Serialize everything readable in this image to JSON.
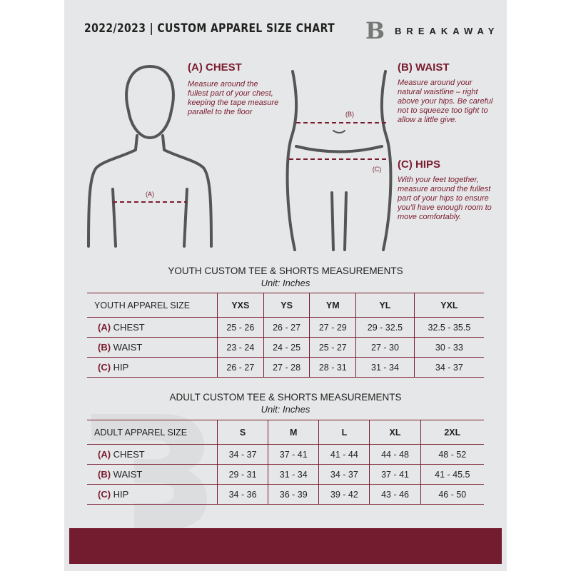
{
  "header": {
    "title": "2022/2023  |  CUSTOM APPAREL SIZE CHART",
    "brand": "BREAKAWAY"
  },
  "guide": {
    "chest": {
      "heading": "(A) CHEST",
      "marker": "(A)",
      "text": "Measure around the fullest part of your chest, keeping the tape measure parallel to the floor"
    },
    "waist": {
      "heading": "(B) WAIST",
      "marker": "(B)",
      "text": "Measure around your natural waistline – right above your hips. Be careful not to squeeze too tight to allow a little give."
    },
    "hips": {
      "heading": "(C) HIPS",
      "marker": "(C)",
      "text": "With your feet together, measure around the fullest part of your hips to ensure you'll have enough room to move comfortably."
    }
  },
  "youth": {
    "title": "YOUTH CUSTOM TEE & SHORTS MEASUREMENTS",
    "unit": "Unit: Inches",
    "size_label": "YOUTH APPAREL SIZE",
    "sizes": [
      "YXS",
      "YS",
      "YM",
      "YL",
      "YXL"
    ],
    "rows": [
      {
        "code": "(A)",
        "name": "CHEST",
        "values": [
          "25 - 26",
          "26 - 27",
          "27 - 29",
          "29 - 32.5",
          "32.5 - 35.5"
        ]
      },
      {
        "code": "(B)",
        "name": "WAIST",
        "values": [
          "23 - 24",
          "24 - 25",
          "25 - 27",
          "27 - 30",
          "30 - 33"
        ]
      },
      {
        "code": "(C)",
        "name": "HIP",
        "values": [
          "26 - 27",
          "27 - 28",
          "28 - 31",
          "31 - 34",
          "34 - 37"
        ]
      }
    ]
  },
  "adult": {
    "title": "ADULT CUSTOM TEE & SHORTS MEASUREMENTS",
    "unit": "Unit: Inches",
    "size_label": "ADULT APPAREL SIZE",
    "sizes": [
      "S",
      "M",
      "L",
      "XL",
      "2XL"
    ],
    "rows": [
      {
        "code": "(A)",
        "name": "CHEST",
        "values": [
          "34 - 37",
          "37 - 41",
          "41 - 44",
          "44 - 48",
          "48 - 52"
        ]
      },
      {
        "code": "(B)",
        "name": "WAIST",
        "values": [
          "29 - 31",
          "31 - 34",
          "34 - 37",
          "37 - 41",
          "41 - 45.5"
        ]
      },
      {
        "code": "(C)",
        "name": "HIP",
        "values": [
          "34 - 36",
          "36 - 39",
          "39 - 42",
          "43 - 46",
          "46 - 50"
        ]
      }
    ]
  },
  "colors": {
    "accent": "#7a1c30",
    "background": "#e6e7e8",
    "footer": "#731c30"
  }
}
